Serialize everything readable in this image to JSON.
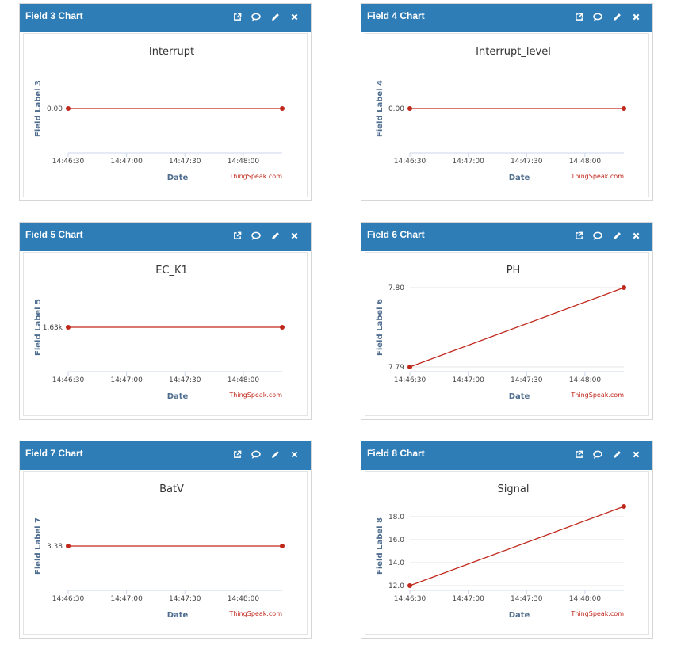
{
  "widgets": [
    {
      "id": "field3",
      "title": "Field 3 Chart",
      "chart_data": {
        "type": "line",
        "title": "Interrupt",
        "xlabel": "Date",
        "ylabel": "Field Label 3",
        "x": [
          "14:46:30",
          "14:48:20"
        ],
        "x_ticks": [
          "14:46:30",
          "14:47:00",
          "14:47:30",
          "14:48:00"
        ],
        "y_ticks": [
          "0.00"
        ],
        "series": [
          {
            "values": [
              0,
              0
            ],
            "color": "#c0281c"
          }
        ],
        "credit": "ThingSpeak.com",
        "grid": true
      }
    },
    {
      "id": "field4",
      "title": "Field 4 Chart",
      "chart_data": {
        "type": "line",
        "title": "Interrupt_level",
        "xlabel": "Date",
        "ylabel": "Field Label 4",
        "x": [
          "14:46:30",
          "14:48:20"
        ],
        "x_ticks": [
          "14:46:30",
          "14:47:00",
          "14:47:30",
          "14:48:00"
        ],
        "y_ticks": [
          "0.00"
        ],
        "series": [
          {
            "values": [
              0,
              0
            ],
            "color": "#c0281c"
          }
        ],
        "credit": "ThingSpeak.com",
        "grid": true
      }
    },
    {
      "id": "field5",
      "title": "Field 5 Chart",
      "chart_data": {
        "type": "line",
        "title": "EC_K1",
        "xlabel": "Date",
        "ylabel": "Field Label 5",
        "x": [
          "14:46:30",
          "14:48:20"
        ],
        "x_ticks": [
          "14:46:30",
          "14:47:00",
          "14:47:30",
          "14:48:00"
        ],
        "y_ticks": [
          "1.63k"
        ],
        "series": [
          {
            "values": [
              1630,
              1630
            ],
            "color": "#c0281c"
          }
        ],
        "credit": "ThingSpeak.com",
        "grid": true
      }
    },
    {
      "id": "field6",
      "title": "Field 6 Chart",
      "chart_data": {
        "type": "line",
        "title": "PH",
        "xlabel": "Date",
        "ylabel": "Field Label 6",
        "x": [
          "14:46:30",
          "14:48:20"
        ],
        "x_ticks": [
          "14:46:30",
          "14:47:00",
          "14:47:30",
          "14:48:00"
        ],
        "y_ticks": [
          "7.79",
          "7.80"
        ],
        "ylim": [
          7.79,
          7.8
        ],
        "series": [
          {
            "values": [
              7.79,
              7.8
            ],
            "color": "#c0281c"
          }
        ],
        "credit": "ThingSpeak.com",
        "grid": true
      }
    },
    {
      "id": "field7",
      "title": "Field 7 Chart",
      "chart_data": {
        "type": "line",
        "title": "BatV",
        "xlabel": "Date",
        "ylabel": "Field Label 7",
        "x": [
          "14:46:30",
          "14:48:20"
        ],
        "x_ticks": [
          "14:46:30",
          "14:47:00",
          "14:47:30",
          "14:48:00"
        ],
        "y_ticks": [
          "3.38"
        ],
        "series": [
          {
            "values": [
              3.38,
              3.38
            ],
            "color": "#c0281c"
          }
        ],
        "credit": "ThingSpeak.com",
        "grid": true
      }
    },
    {
      "id": "field8",
      "title": "Field 8 Chart",
      "chart_data": {
        "type": "line",
        "title": "Signal",
        "xlabel": "Date",
        "ylabel": "Field Label 8",
        "x": [
          "14:46:30",
          "14:48:20"
        ],
        "x_ticks": [
          "14:46:30",
          "14:47:00",
          "14:47:30",
          "14:48:00"
        ],
        "y_ticks": [
          "12.0",
          "14.0",
          "16.0",
          "18.0"
        ],
        "ylim": [
          12,
          18.9
        ],
        "series": [
          {
            "values": [
              12,
              18.9
            ],
            "color": "#c0281c"
          }
        ],
        "credit": "ThingSpeak.com",
        "grid": true
      }
    }
  ],
  "tool_icons": [
    "open-external-icon",
    "comment-icon",
    "pencil-icon",
    "close-icon"
  ],
  "colors": {
    "header": "#2e7db7",
    "series": "#c0281c",
    "axis_label": "#4f6d8f",
    "title": "#333333"
  }
}
